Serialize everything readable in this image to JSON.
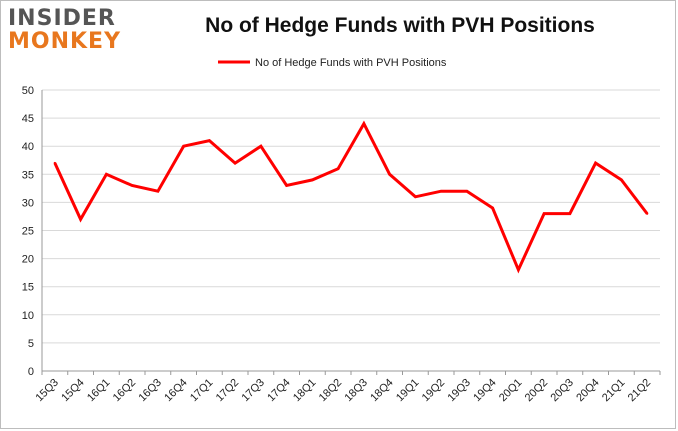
{
  "logo": {
    "line1": "INSIDER",
    "line2": "MONKEY"
  },
  "colors": {
    "series": "#ff0000",
    "grid": "#d9d9d9",
    "axis": "#999999",
    "logo_grey": "#555555",
    "logo_orange": "#e8771e"
  },
  "chart_data": {
    "type": "line",
    "title": "No of Hedge Funds with PVH Positions",
    "xlabel": "",
    "ylabel": "",
    "ylim": [
      0,
      50
    ],
    "yticks": [
      0,
      5,
      10,
      15,
      20,
      25,
      30,
      35,
      40,
      45,
      50
    ],
    "grid": true,
    "legend_position": "top-center",
    "categories": [
      "15Q3",
      "15Q4",
      "16Q1",
      "16Q2",
      "16Q3",
      "16Q4",
      "17Q1",
      "17Q2",
      "17Q3",
      "17Q4",
      "18Q1",
      "18Q2",
      "18Q3",
      "18Q4",
      "19Q1",
      "19Q2",
      "19Q3",
      "19Q4",
      "20Q1",
      "20Q2",
      "20Q3",
      "20Q4",
      "21Q1",
      "21Q2"
    ],
    "series": [
      {
        "name": "No of Hedge Funds with PVH Positions",
        "values": [
          37,
          27,
          35,
          33,
          32,
          40,
          41,
          37,
          40,
          33,
          34,
          36,
          44,
          35,
          31,
          32,
          32,
          29,
          18,
          28,
          28,
          37,
          34,
          28
        ]
      }
    ]
  }
}
